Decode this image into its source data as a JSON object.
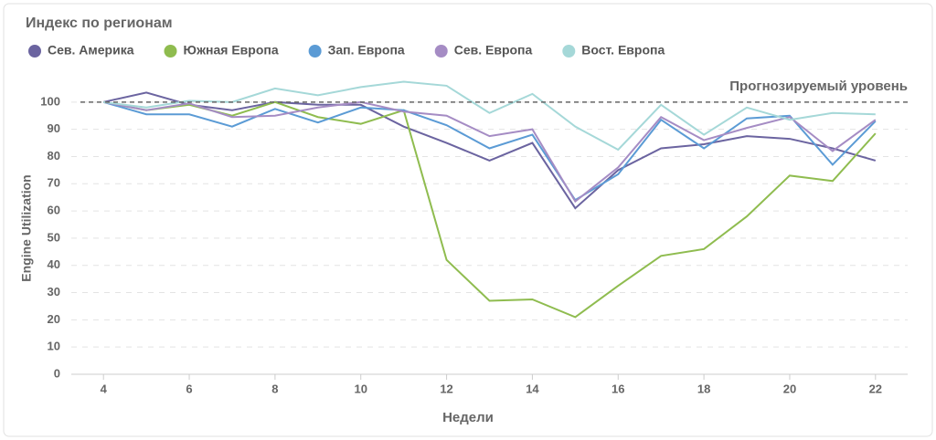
{
  "chart_data": {
    "type": "line",
    "title": "Индекс по регионам",
    "x_label": "Недели",
    "y_label": "Engine Utilization",
    "x": [
      4,
      5,
      6,
      7,
      8,
      9,
      10,
      11,
      12,
      13,
      14,
      15,
      16,
      17,
      18,
      19,
      20,
      21,
      22
    ],
    "series": [
      {
        "name": "Сев. Америка",
        "color": "#6b64a0",
        "values": [
          100,
          103.5,
          99,
          97,
          100,
          99,
          99,
          91,
          85,
          78.5,
          85,
          61,
          75,
          83,
          84.5,
          87.5,
          86.5,
          83,
          78.5
        ]
      },
      {
        "name": "Южная Европа",
        "color": "#8fbc4f",
        "values": [
          100,
          97,
          99,
          95,
          100,
          94.5,
          92,
          97,
          42,
          27,
          27.5,
          21,
          32.5,
          43.5,
          46,
          58,
          73,
          71,
          88.5
        ]
      },
      {
        "name": "Зап. Европа",
        "color": "#5b9bd5",
        "values": [
          100,
          95.5,
          95.5,
          91,
          97.5,
          92.5,
          98,
          97,
          91.5,
          83,
          88,
          64,
          73.5,
          93.5,
          83,
          94,
          95,
          77,
          93
        ]
      },
      {
        "name": "Сев. Европа",
        "color": "#a58cc4",
        "values": [
          100,
          97,
          99.5,
          94.5,
          95,
          98,
          100,
          96.5,
          95,
          87.5,
          90,
          63.5,
          76,
          94.5,
          86,
          90.5,
          94.5,
          82,
          93.5
        ]
      },
      {
        "name": "Вост. Европа",
        "color": "#a5d8d8",
        "values": [
          100,
          98,
          100.5,
          100,
          105,
          102.5,
          105.5,
          107.5,
          106,
          96,
          103,
          91,
          82.5,
          99,
          88,
          98,
          93.5,
          96,
          95.5
        ]
      }
    ],
    "reference": {
      "value": 100,
      "label": "Прогнозируемый уровень"
    },
    "xlim": [
      3.25,
      22.75
    ],
    "xticks": [
      4,
      6,
      8,
      10,
      12,
      14,
      16,
      18,
      20,
      22
    ],
    "ylim": [
      0,
      110
    ],
    "yticks": [
      0,
      10,
      20,
      30,
      40,
      50,
      60,
      70,
      80,
      90,
      100
    ],
    "grid": true
  }
}
